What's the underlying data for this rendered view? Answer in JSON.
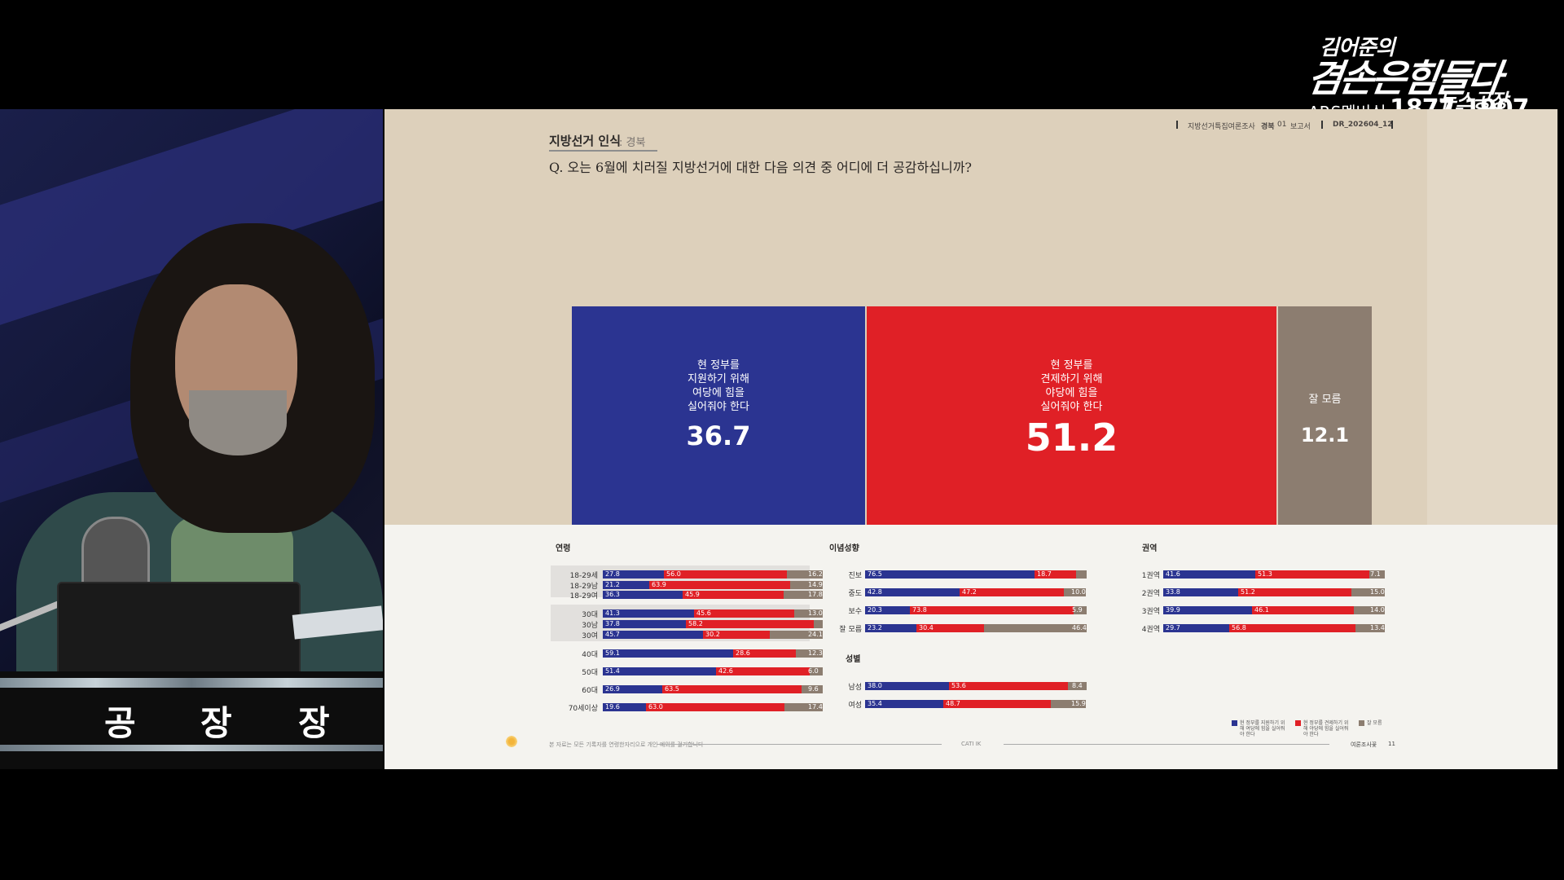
{
  "logo": {
    "line1": "김어준의",
    "line2": "겸손은힘들다",
    "line3": "뉴스공장",
    "ars_label": "ARS멤버십",
    "ars_number": "1877-1907"
  },
  "desk_sign": {
    "chars": [
      "공",
      "장",
      "장"
    ]
  },
  "slide": {
    "section_title": "지방선거 인식",
    "section_sub": ": 경북",
    "question": "Q. 오는 6월에 치러질 지방선거에 대한 다음 의견 중 어디에 더 공감하십니까?",
    "header": {
      "survey": "지방선거특집여론조사",
      "region": "경북",
      "part": "01",
      "report": "보고서",
      "code": "DR_202604_12"
    },
    "colors": {
      "blue": "#2b3491",
      "red": "#e02026",
      "gray": "#8c7d70"
    },
    "main": {
      "support": {
        "label_lines": [
          "현 정부를",
          "지원하기 위해",
          "여당에 힘을",
          "실어줘야 한다"
        ],
        "value": "36.7"
      },
      "check": {
        "label_lines": [
          "현 정부를",
          "견제하기 위해",
          "야당에 힘을",
          "실어줘야 한다"
        ],
        "value": "51.2"
      },
      "unknown": {
        "label": "잘 모름",
        "value": "12.1"
      }
    },
    "legend": [
      "현 정부를 지원하기 위해 여당에 힘을 실어줘야 한다",
      "현 정부를 견제하기 위해 야당에 힘을 실어줘야 한다",
      "잘 모름"
    ],
    "footer": {
      "note": "본 자료는 모든 기록자를 연령한자리으로 개인 예외를 걸기합니다",
      "method": "CATI IK",
      "org": "여론조사꽃",
      "page": "11"
    }
  },
  "chart_data": {
    "type": "bar",
    "orientation": "horizontal-stacked",
    "series_names": [
      "현 정부를 지원하기 위해 여당에 힘을 실어줘야 한다",
      "현 정부를 견제하기 위해 야당에 힘을 실어줘야 한다",
      "잘 모름"
    ],
    "main": {
      "categories": [
        "현 정부 지원",
        "현 정부 견제",
        "잘 모름"
      ],
      "values": [
        36.7,
        51.2,
        12.1
      ]
    },
    "groups": [
      {
        "name": "연령",
        "rows": [
          {
            "label": "18-29세",
            "values": [
              27.8,
              56.0,
              16.2
            ],
            "highlight": "a"
          },
          {
            "label": "18-29남",
            "values": [
              21.2,
              63.9,
              14.9
            ],
            "highlight": "a"
          },
          {
            "label": "18-29여",
            "values": [
              36.3,
              45.9,
              17.8
            ],
            "highlight": "a"
          },
          {
            "label": "30대",
            "values": [
              41.3,
              45.6,
              13.0
            ],
            "highlight": "b"
          },
          {
            "label": "30남",
            "values": [
              37.8,
              58.2,
              null
            ],
            "highlight": "b"
          },
          {
            "label": "30여",
            "values": [
              45.7,
              30.2,
              24.1
            ],
            "highlight": "b"
          },
          {
            "label": "40대",
            "values": [
              59.1,
              28.6,
              12.3
            ]
          },
          {
            "label": "50대",
            "values": [
              51.4,
              42.6,
              6.0
            ]
          },
          {
            "label": "60대",
            "values": [
              26.9,
              63.5,
              9.6
            ]
          },
          {
            "label": "70세이상",
            "values": [
              19.6,
              63.0,
              17.4
            ]
          }
        ]
      },
      {
        "name": "이념성향",
        "rows": [
          {
            "label": "진보",
            "values": [
              76.5,
              18.7,
              null
            ]
          },
          {
            "label": "중도",
            "values": [
              42.8,
              47.2,
              10.0
            ]
          },
          {
            "label": "보수",
            "values": [
              20.3,
              73.8,
              5.9
            ]
          },
          {
            "label": "잘 모름",
            "values": [
              23.2,
              30.4,
              46.4
            ]
          }
        ]
      },
      {
        "name": "성별",
        "rows": [
          {
            "label": "남성",
            "values": [
              38.0,
              53.6,
              8.4
            ]
          },
          {
            "label": "여성",
            "values": [
              35.4,
              48.7,
              15.9
            ]
          }
        ]
      },
      {
        "name": "권역",
        "rows": [
          {
            "label": "1권역",
            "values": [
              41.6,
              51.3,
              7.1
            ]
          },
          {
            "label": "2권역",
            "values": [
              33.8,
              51.2,
              15.0
            ]
          },
          {
            "label": "3권역",
            "values": [
              39.9,
              46.1,
              14.0
            ]
          },
          {
            "label": "4권역",
            "values": [
              29.7,
              56.8,
              13.4
            ]
          }
        ]
      }
    ]
  }
}
